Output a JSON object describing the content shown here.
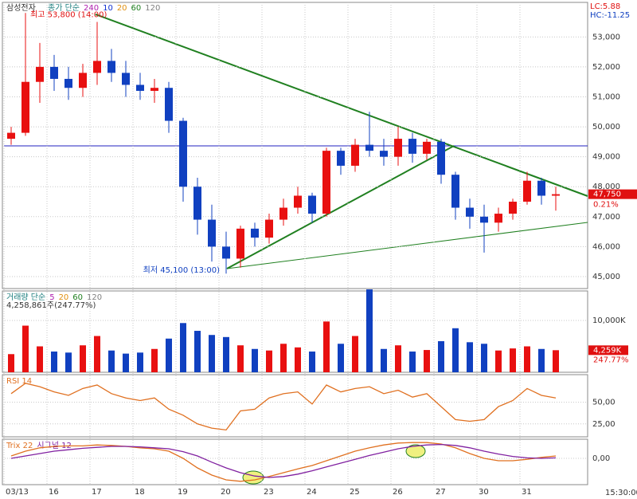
{
  "header": {
    "name": "삼성전자",
    "lc": "LC:5.88",
    "hc": "HC:-11.25",
    "last_time": "15:30:00"
  },
  "chart_data": [
    {
      "type": "candlestick",
      "title": "종가 단순",
      "legend": [
        {
          "text": "240",
          "color": "#b020b0"
        },
        {
          "text": "10",
          "color": "#1030d0"
        },
        {
          "text": "20",
          "color": "#e09010"
        },
        {
          "text": "60",
          "color": "#208020"
        },
        {
          "text": "120",
          "color": "#808080"
        }
      ],
      "categories": [
        "03/13",
        null,
        null,
        "16",
        null,
        null,
        "17",
        null,
        null,
        "18",
        null,
        null,
        "19",
        null,
        null,
        "20",
        null,
        null,
        "23",
        null,
        null,
        "24",
        null,
        null,
        "25",
        null,
        null,
        "26",
        null,
        null,
        "27",
        null,
        null,
        "30",
        null,
        null,
        "31",
        null,
        null
      ],
      "open": [
        49600,
        49800,
        51500,
        52000,
        51600,
        51300,
        51800,
        52200,
        51800,
        51400,
        51200,
        51300,
        50200,
        48000,
        46900,
        46000,
        45600,
        46600,
        46300,
        46900,
        47300,
        47700,
        47100,
        49200,
        48700,
        49400,
        49200,
        49000,
        49600,
        49100,
        49500,
        48400,
        47300,
        47000,
        46800,
        47100,
        47500,
        48200,
        47700
      ],
      "high": [
        50000,
        53800,
        52800,
        52400,
        52000,
        52100,
        53500,
        52600,
        52200,
        51800,
        51600,
        51500,
        50300,
        48300,
        47400,
        46500,
        46700,
        46800,
        47100,
        47600,
        48000,
        47800,
        49300,
        49300,
        49600,
        50500,
        49600,
        50000,
        49800,
        49600,
        49600,
        48500,
        47600,
        47400,
        47300,
        47600,
        48500,
        48300,
        48000
      ],
      "low": [
        49400,
        49700,
        50800,
        51200,
        50900,
        51000,
        51400,
        51500,
        51000,
        50900,
        50800,
        49800,
        47500,
        46400,
        45500,
        45100,
        45300,
        46000,
        46100,
        46700,
        47100,
        46800,
        47000,
        48400,
        48500,
        49000,
        48700,
        48700,
        48800,
        48900,
        48100,
        46900,
        46600,
        45800,
        46500,
        46900,
        47400,
        47400,
        47200
      ],
      "close": [
        49800,
        51500,
        52000,
        51600,
        51300,
        51800,
        52200,
        51800,
        51400,
        51200,
        51300,
        50200,
        48000,
        46900,
        46000,
        45600,
        46600,
        46300,
        46900,
        47300,
        47700,
        47100,
        49200,
        48700,
        49400,
        49200,
        49000,
        49600,
        49100,
        49500,
        48400,
        47300,
        47000,
        46800,
        47100,
        47500,
        48200,
        47700,
        47750
      ],
      "colors": {
        "up": "#e81010",
        "down": "#1040c0"
      },
      "ylim": [
        44600,
        54100
      ],
      "yticks": [
        {
          "value": 45000,
          "label": "45,000"
        },
        {
          "value": 46000,
          "label": "46,000"
        },
        {
          "value": 47000,
          "label": "47,000"
        },
        {
          "value": 48000,
          "label": "48,000"
        },
        {
          "value": 49000,
          "label": "49,000"
        },
        {
          "value": 50000,
          "label": "50,000"
        },
        {
          "value": 51000,
          "label": "51,000"
        },
        {
          "value": 52000,
          "label": "52,000"
        },
        {
          "value": 53000,
          "label": "53,000"
        }
      ],
      "grid": true,
      "annotations": {
        "high": "최고 53,800 (14:00)",
        "low": "최저 45,100 (13:00)",
        "last": "47,750",
        "change": "0.21%"
      }
    },
    {
      "type": "bar",
      "title": "거래량 단순",
      "legend": [
        {
          "text": "5",
          "color": "#b020b0"
        },
        {
          "text": "20",
          "color": "#e09010"
        },
        {
          "text": "60",
          "color": "#208020"
        },
        {
          "text": "120",
          "color": "#808080"
        }
      ],
      "subtitle": "4,258,861주(247.77%)",
      "last": "4,259K",
      "ratio": "247.77%",
      "values": [
        3500,
        9000,
        5000,
        4000,
        3800,
        5200,
        7000,
        4200,
        3600,
        3800,
        4500,
        6500,
        9500,
        8000,
        7200,
        6800,
        5200,
        4500,
        4200,
        5500,
        4800,
        4000,
        9800,
        5500,
        7000,
        16000,
        4500,
        5200,
        4000,
        4300,
        6000,
        8500,
        5800,
        5500,
        4200,
        4600,
        5000,
        4500,
        4259
      ],
      "ylim": [
        0,
        15700
      ],
      "yticks": [
        {
          "value": 10000,
          "label": "10,000K"
        }
      ],
      "grid": true
    },
    {
      "type": "line",
      "series": [
        {
          "name": "RSI 14",
          "color": "#e07020",
          "values": [
            60,
            72,
            68,
            62,
            58,
            66,
            70,
            60,
            55,
            52,
            55,
            42,
            35,
            25,
            20,
            18,
            40,
            42,
            55,
            60,
            62,
            48,
            70,
            62,
            66,
            68,
            60,
            64,
            56,
            60,
            45,
            30,
            28,
            30,
            45,
            52,
            66,
            58,
            55
          ]
        }
      ],
      "ylim": [
        10,
        82
      ],
      "yticks": [
        {
          "value": 25,
          "label": "25,00"
        },
        {
          "value": 50,
          "label": "50,00"
        }
      ],
      "grid": true
    },
    {
      "type": "line",
      "series": [
        {
          "name": "Trix 22",
          "color": "#e07020",
          "values": [
            0.05,
            0.15,
            0.22,
            0.25,
            0.26,
            0.26,
            0.28,
            0.27,
            0.25,
            0.22,
            0.2,
            0.15,
            0.0,
            -0.2,
            -0.35,
            -0.45,
            -0.48,
            -0.45,
            -0.38,
            -0.3,
            -0.22,
            -0.15,
            -0.05,
            0.05,
            0.15,
            0.22,
            0.28,
            0.32,
            0.33,
            0.33,
            0.3,
            0.22,
            0.1,
            0.0,
            -0.05,
            -0.05,
            -0.02,
            0.02,
            0.05
          ]
        },
        {
          "name": "시그널 12",
          "color": "#8020a0",
          "values": [
            0.0,
            0.05,
            0.1,
            0.15,
            0.18,
            0.21,
            0.23,
            0.25,
            0.25,
            0.24,
            0.22,
            0.2,
            0.14,
            0.05,
            -0.08,
            -0.2,
            -0.3,
            -0.37,
            -0.4,
            -0.38,
            -0.33,
            -0.26,
            -0.18,
            -0.1,
            -0.02,
            0.06,
            0.13,
            0.2,
            0.25,
            0.28,
            0.29,
            0.27,
            0.22,
            0.15,
            0.09,
            0.04,
            0.01,
            0.0,
            0.01
          ]
        }
      ],
      "ylim": [
        -0.55,
        0.4
      ],
      "yticks": [
        {
          "value": 0,
          "label": "0,00"
        }
      ],
      "grid": true
    }
  ]
}
